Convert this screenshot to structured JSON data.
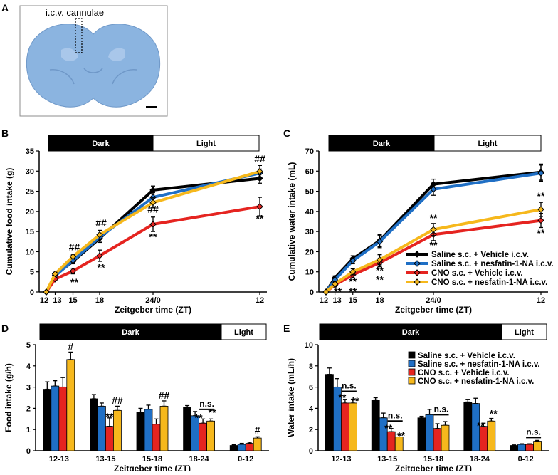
{
  "panels": {
    "A": {
      "label": "A",
      "annotation": "i.c.v. cannulae"
    },
    "B": {
      "label": "B"
    },
    "C": {
      "label": "C"
    },
    "D": {
      "label": "D"
    },
    "E": {
      "label": "E"
    }
  },
  "colors": {
    "saline_vehicle": "#000000",
    "saline_nesfatin": "#1f6fc5",
    "cno_vehicle": "#e52420",
    "cno_nesfatin": "#f6b81c",
    "brain": "#8bb4e0",
    "dark_bar": "#000000"
  },
  "legend": [
    "Saline s.c. + Vehicle i.c.v.",
    "Saline s.c. + nesfatin-1-NA i.c.v.",
    "CNO s.c. + Vehicle i.c.v.",
    "CNO s.c. + nesfatin-1-NA i.c.v."
  ],
  "chart_data": [
    {
      "id": "B",
      "type": "line",
      "dark_label": "Dark",
      "light_label": "Light",
      "xlabel": "Zeitgeber time (ZT)",
      "ylabel": "Cumulative food intake (g)",
      "x": [
        12,
        13,
        15,
        18,
        24,
        36
      ],
      "x_tick_labels": [
        "12",
        "13",
        "15",
        "18",
        "24/0",
        "12"
      ],
      "ylim": [
        0,
        35
      ],
      "yticks": [
        0,
        5,
        10,
        15,
        20,
        25,
        30,
        35
      ],
      "series": [
        {
          "name": "Saline s.c. + Vehicle i.c.v.",
          "values": [
            0,
            4.2,
            7.6,
            13.3,
            25.3,
            28.2
          ],
          "errors": [
            0,
            0.3,
            0.6,
            1.0,
            1.0,
            1.2
          ]
        },
        {
          "name": "Saline s.c. + nesfatin-1-NA i.c.v.",
          "values": [
            0,
            4.0,
            7.8,
            13.6,
            23.5,
            29.5
          ],
          "errors": [
            0,
            0.3,
            0.6,
            1.0,
            1.2,
            1.0
          ]
        },
        {
          "name": "CNO s.c. + Vehicle i.c.v.",
          "values": [
            0,
            3.2,
            5.2,
            9.0,
            16.8,
            21.2
          ],
          "errors": [
            0,
            0.4,
            0.7,
            1.4,
            1.8,
            2.3
          ]
        },
        {
          "name": "CNO s.c. + nesfatin-1-NA i.c.v.",
          "values": [
            0,
            4.5,
            8.8,
            14.2,
            22.2,
            29.9
          ],
          "errors": [
            0,
            0.4,
            0.6,
            1.1,
            1.3,
            1.5
          ]
        }
      ],
      "annotations": [
        "##",
        "**",
        "##",
        "**",
        "##",
        "**",
        "##",
        "**"
      ]
    },
    {
      "id": "C",
      "type": "line",
      "dark_label": "Dark",
      "light_label": "Light",
      "xlabel": "Zeitgeber time (ZT)",
      "ylabel": "Cumulative water intake (mL)",
      "x": [
        12,
        13,
        15,
        18,
        24,
        36
      ],
      "x_tick_labels": [
        "12",
        "13",
        "15",
        "18",
        "24/0",
        "12"
      ],
      "ylim": [
        0,
        70
      ],
      "yticks": [
        0,
        10,
        20,
        30,
        40,
        50,
        60,
        70
      ],
      "series": [
        {
          "name": "Saline s.c. + Vehicle i.c.v.",
          "values": [
            0,
            7.0,
            16.5,
            25.5,
            53.5,
            59.5
          ],
          "errors": [
            0,
            1.0,
            1.5,
            3.0,
            2.5,
            4.0
          ]
        },
        {
          "name": "Saline s.c. + nesfatin-1-NA i.c.v.",
          "values": [
            0,
            6.0,
            15.5,
            25.0,
            51.0,
            59.0
          ],
          "errors": [
            0,
            1.0,
            1.5,
            3.0,
            3.0,
            4.0
          ]
        },
        {
          "name": "CNO s.c. + Vehicle i.c.v.",
          "values": [
            0,
            3.5,
            8.5,
            14.5,
            28.5,
            35.5
          ],
          "errors": [
            0,
            1.0,
            1.5,
            2.0,
            3.0,
            3.5
          ]
        },
        {
          "name": "CNO s.c. + nesfatin-1-NA i.c.v.",
          "values": [
            0,
            4.0,
            10.0,
            16.0,
            31.0,
            41.0
          ],
          "errors": [
            0,
            1.0,
            1.5,
            2.5,
            3.0,
            3.5
          ]
        }
      ],
      "annotations": [
        "**",
        "**",
        "**",
        "**",
        "**",
        "**",
        "**",
        "**",
        "**",
        "**"
      ]
    },
    {
      "id": "D",
      "type": "bar",
      "dark_label": "Dark",
      "light_label": "Light",
      "xlabel": "Zeitgeber time (ZT)",
      "ylabel": "Food intake (g/h)",
      "categories": [
        "12-13",
        "13-15",
        "15-18",
        "18-24",
        "0-12"
      ],
      "ylim": [
        0,
        5
      ],
      "yticks": [
        0,
        1,
        2,
        3,
        4,
        5
      ],
      "series": [
        {
          "name": "Saline s.c. + Vehicle i.c.v.",
          "values": [
            2.9,
            2.45,
            1.8,
            2.05,
            0.25
          ],
          "errors": [
            0.35,
            0.2,
            0.2,
            0.08,
            0.04
          ]
        },
        {
          "name": "Saline s.c. + nesfatin-1-NA i.c.v.",
          "values": [
            3.05,
            2.1,
            1.95,
            1.65,
            0.3
          ],
          "errors": [
            0.25,
            0.15,
            0.2,
            0.2,
            0.05
          ]
        },
        {
          "name": "CNO s.c. + Vehicle i.c.v.",
          "values": [
            3.0,
            1.15,
            1.25,
            1.3,
            0.35
          ],
          "errors": [
            0.45,
            0.4,
            0.25,
            0.2,
            0.05
          ]
        },
        {
          "name": "CNO s.c. + nesfatin-1-NA i.c.v.",
          "values": [
            4.3,
            1.9,
            2.1,
            1.4,
            0.6
          ],
          "errors": [
            0.35,
            0.2,
            0.25,
            0.1,
            0.06
          ]
        }
      ],
      "annotations": [
        "#",
        "**",
        "##",
        "##",
        "**",
        "**",
        "n.s.",
        "#"
      ]
    },
    {
      "id": "E",
      "type": "bar",
      "dark_label": "Dark",
      "light_label": "Light",
      "xlabel": "Zeitgeber time (ZT)",
      "ylabel": "Water intake (mL/h)",
      "categories": [
        "12-13",
        "13-15",
        "15-18",
        "18-24",
        "0-12"
      ],
      "ylim": [
        0,
        10
      ],
      "yticks": [
        0,
        2,
        4,
        6,
        8,
        10
      ],
      "series": [
        {
          "name": "Saline s.c. + Vehicle i.c.v.",
          "values": [
            7.2,
            4.8,
            3.1,
            4.6,
            0.5
          ],
          "errors": [
            0.6,
            0.2,
            0.15,
            0.25,
            0.05
          ]
        },
        {
          "name": "Saline s.c. + nesfatin-1-NA i.c.v.",
          "values": [
            6.0,
            3.1,
            3.4,
            4.45,
            0.6
          ],
          "errors": [
            0.8,
            0.45,
            0.5,
            0.5,
            0.06
          ]
        },
        {
          "name": "CNO s.c. + Vehicle i.c.v.",
          "values": [
            4.5,
            1.8,
            2.1,
            2.3,
            0.6
          ],
          "errors": [
            0.35,
            0.3,
            0.45,
            0.3,
            0.06
          ]
        },
        {
          "name": "CNO s.c. + nesfatin-1-NA i.c.v.",
          "values": [
            4.5,
            1.3,
            2.4,
            2.8,
            0.9
          ],
          "errors": [
            0.35,
            0.25,
            0.35,
            0.25,
            0.08
          ]
        }
      ],
      "annotations": [
        "n.s.",
        "**",
        "**",
        "n.s.",
        "**",
        "**",
        "n.s.",
        "**",
        "**",
        "n.s."
      ]
    }
  ]
}
